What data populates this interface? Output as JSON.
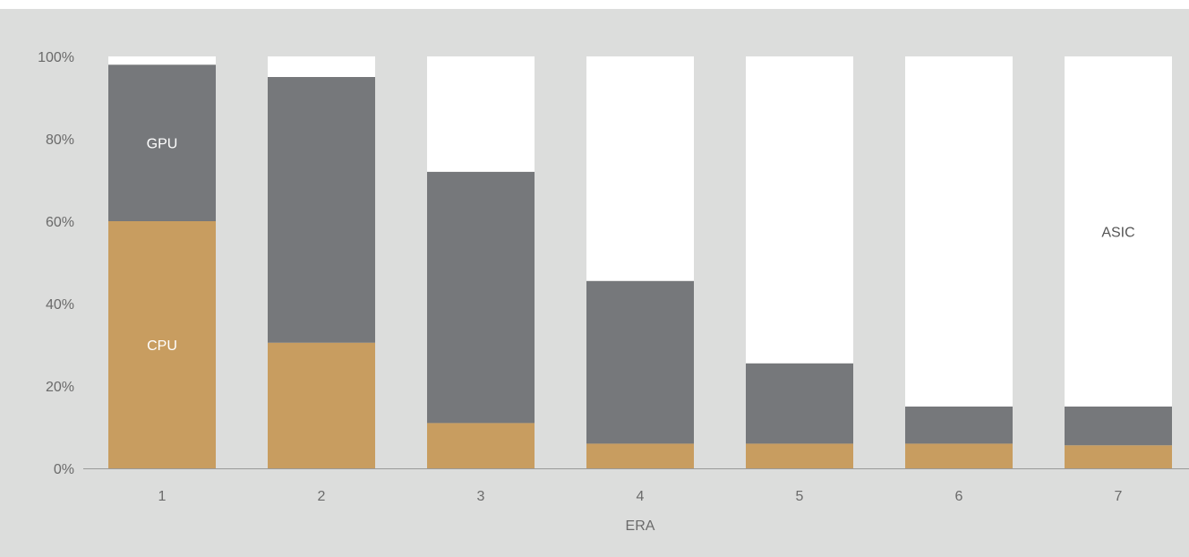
{
  "chart_data": {
    "type": "bar",
    "stacked": true,
    "categories": [
      "1",
      "2",
      "3",
      "4",
      "5",
      "6",
      "7"
    ],
    "series": [
      {
        "name": "CPU",
        "color": "#c89d60",
        "values": [
          60,
          30.5,
          11,
          6,
          6,
          6,
          5.6
        ]
      },
      {
        "name": "GPU",
        "color": "#76787b",
        "values": [
          38,
          64.5,
          61,
          39.5,
          19.5,
          9,
          9.4
        ]
      },
      {
        "name": "ASIC",
        "color": "#ffffff",
        "values": [
          2,
          5,
          28,
          54.5,
          74.5,
          85,
          85
        ]
      }
    ],
    "xlabel": "ERA",
    "ylabel": "",
    "ylim": [
      0,
      100
    ],
    "yticks": [
      "0%",
      "20%",
      "40%",
      "60%",
      "80%",
      "100%"
    ],
    "segment_labels": [
      {
        "series": "GPU",
        "category": "1",
        "text": "GPU"
      },
      {
        "series": "CPU",
        "category": "1",
        "text": "CPU"
      },
      {
        "series": "ASIC",
        "category": "7",
        "text": "ASIC"
      }
    ],
    "grid": false,
    "legend": "none",
    "background": "#dcdddc"
  }
}
